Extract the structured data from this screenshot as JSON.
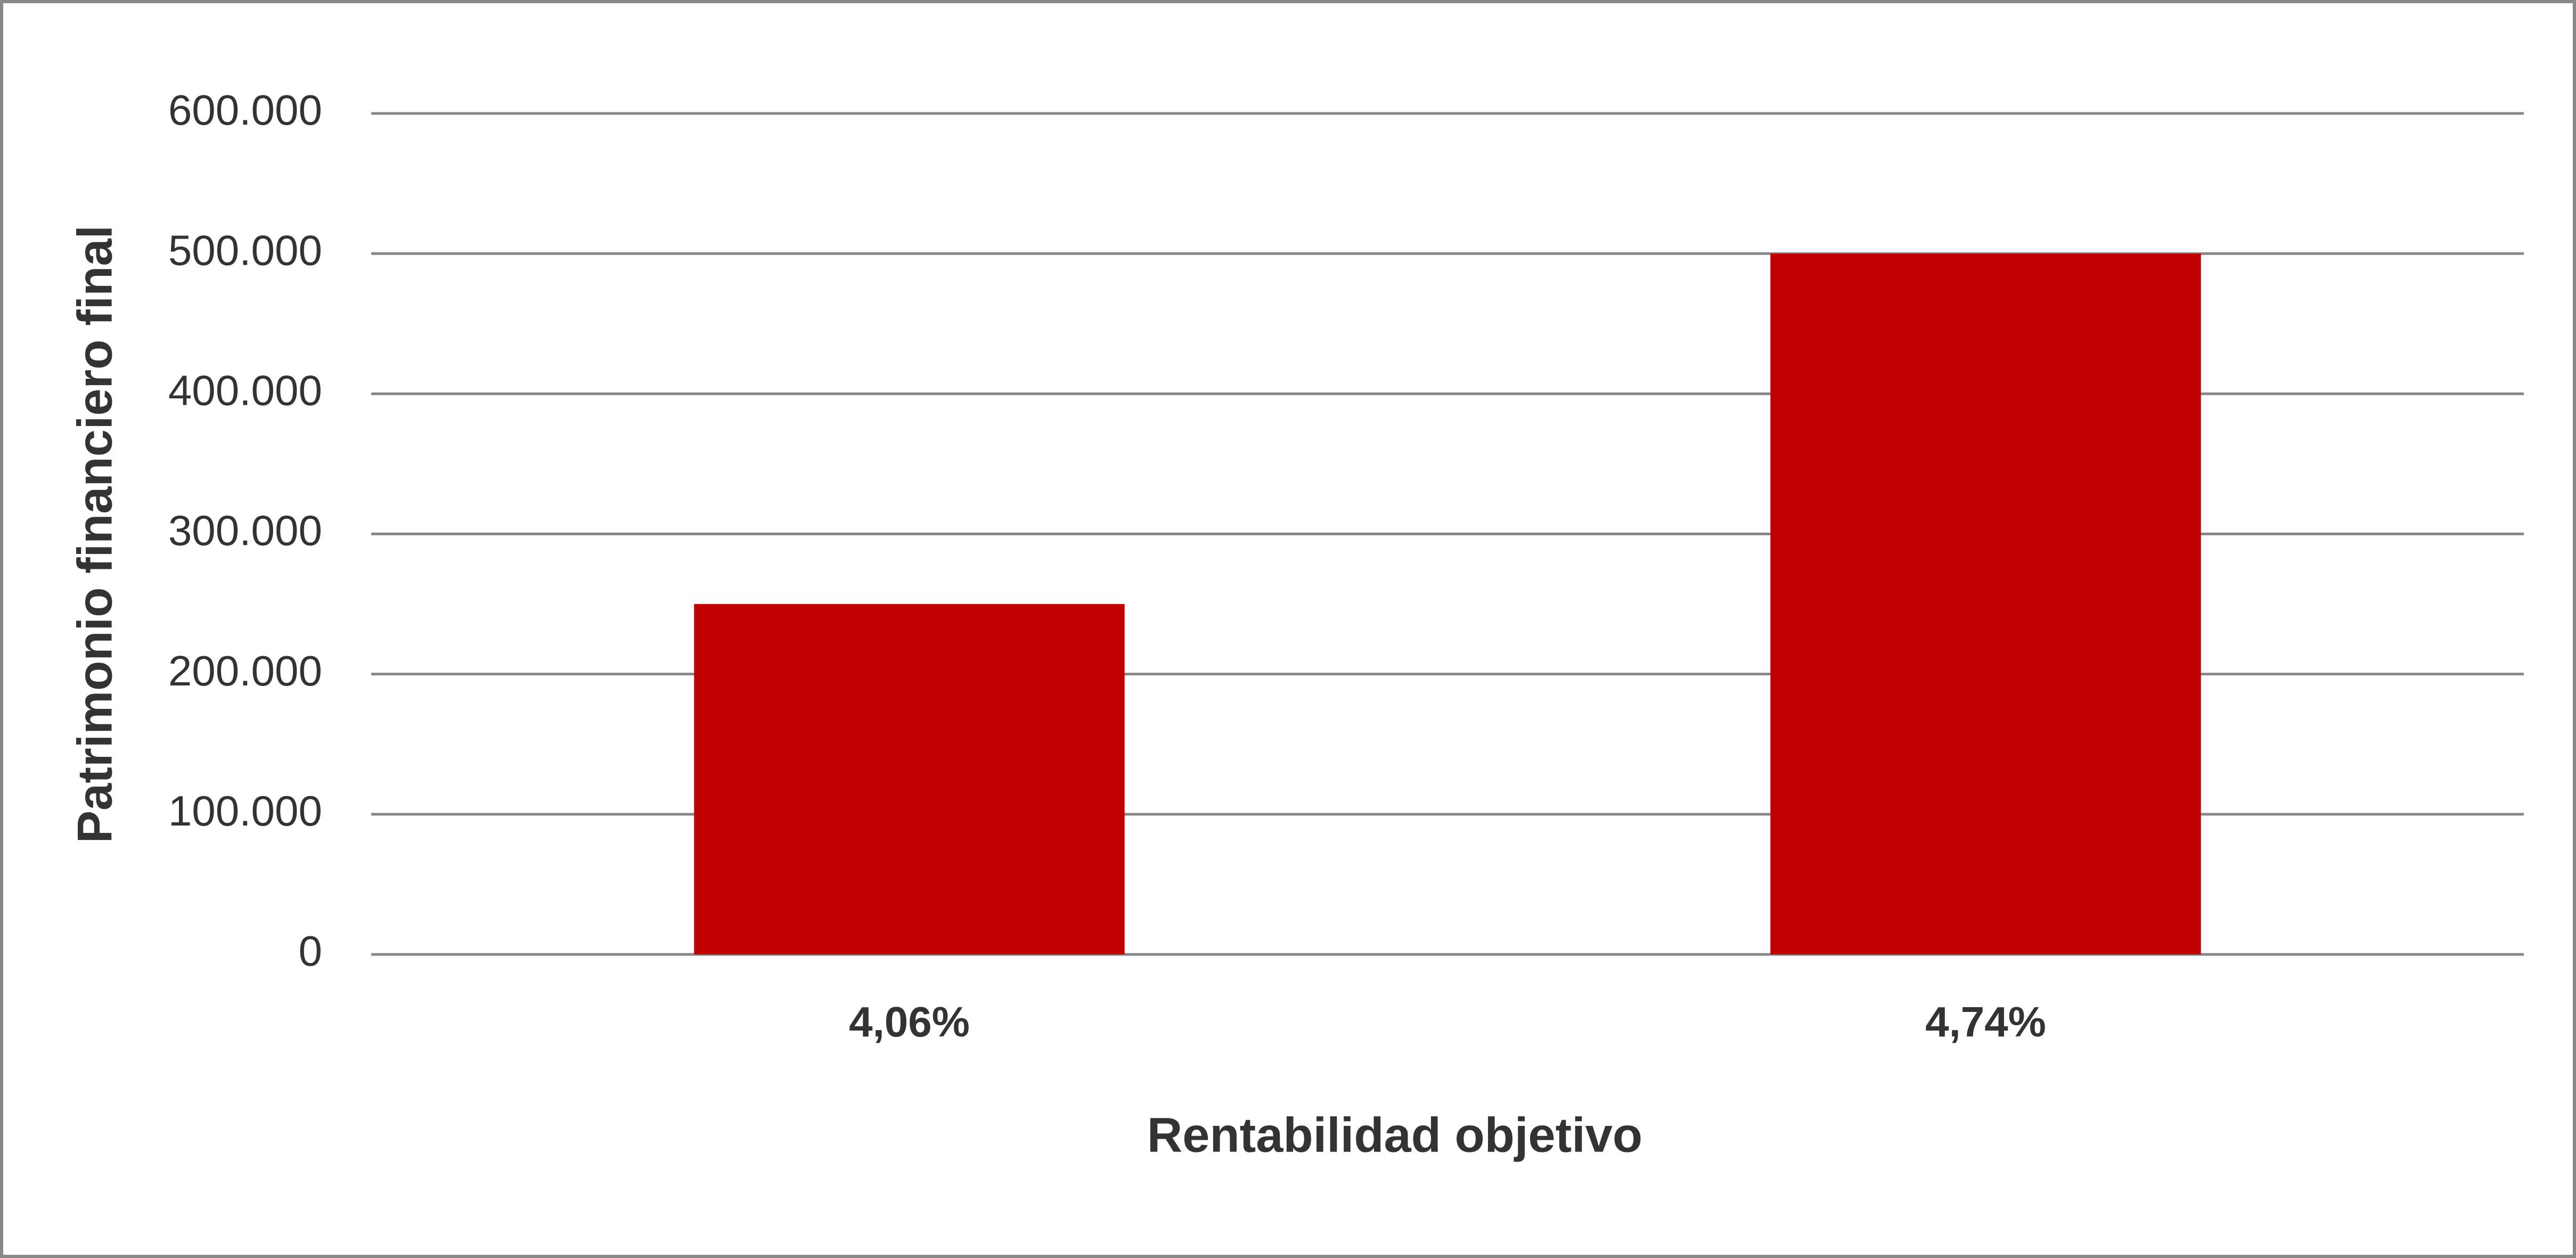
{
  "chart_data": {
    "type": "bar",
    "x_label": "Rentabilidad objetivo",
    "y_label": "Patrimonio financiero final",
    "categories": [
      "4,06%",
      "4,74%"
    ],
    "values": [
      250000,
      500000
    ],
    "color": "#c00000",
    "ylim": [
      0,
      600000
    ],
    "yticks": [
      0,
      {
        "value": 100000,
        "label": "100.000"
      },
      {
        "value": 200000,
        "label": "200.000"
      },
      {
        "value": 300000,
        "label": "300.000"
      },
      {
        "value": 400000,
        "label": "400.000"
      },
      {
        "value": 500000,
        "label": "500.000"
      },
      {
        "value": 600000,
        "label": "600.000"
      }
    ],
    "grid": true
  }
}
